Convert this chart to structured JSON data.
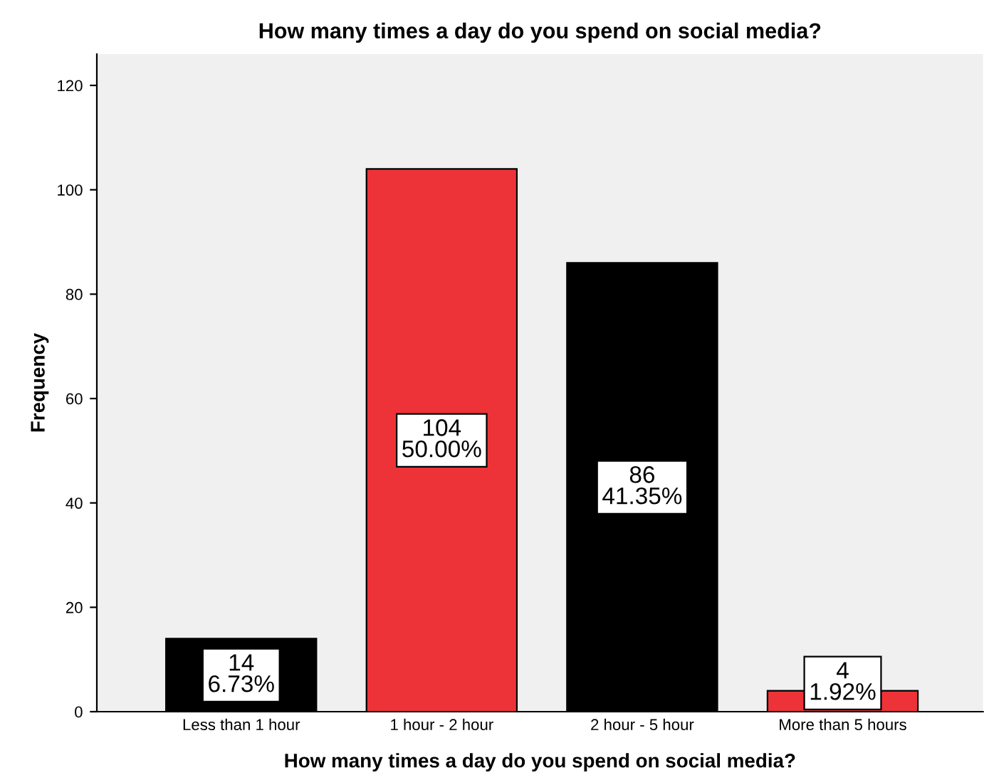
{
  "chart_data": {
    "type": "bar",
    "title": "How many times a day do you spend on social media?",
    "xlabel": "How many times a day do you spend on social media?",
    "ylabel": "Frequency",
    "categories": [
      "Less than 1 hour",
      "1 hour - 2 hour",
      "2 hour - 5 hour",
      "More than 5 hours"
    ],
    "values": [
      14,
      104,
      86,
      4
    ],
    "colors": [
      "#000000",
      "#ee3338",
      "#000000",
      "#ee3338"
    ],
    "value_labels": [
      "14\n6.73%",
      "104\n50.00%",
      "86\n41.35%",
      "4\n1.92%"
    ],
    "ylim": [
      0,
      126
    ],
    "yticks": [
      0,
      20,
      40,
      60,
      80,
      100,
      120
    ],
    "grid": false,
    "legend": false
  }
}
